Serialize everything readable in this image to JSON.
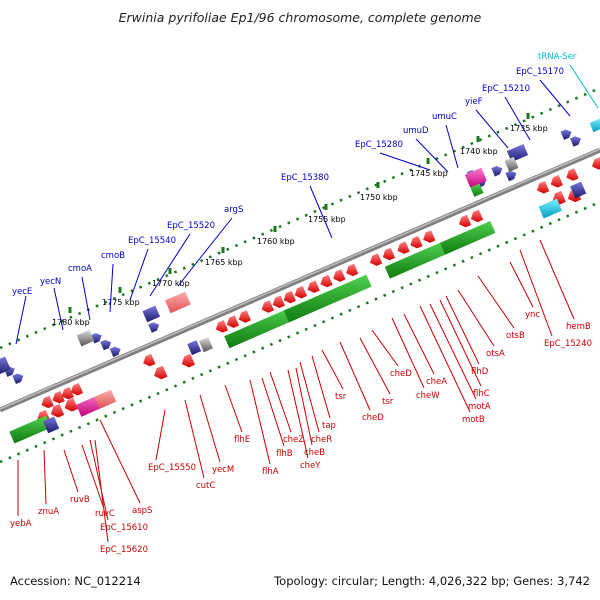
{
  "title": "Erwinia pyrifoliae Ep1/96 chromosome, complete genome",
  "footer": {
    "accession": "Accession: NC_012214",
    "summary": "Topology: circular; Length: 4,026,322 bp; Genes: 3,742"
  },
  "colors": {
    "forward_label": "#0000cc",
    "reverse_label": "#cc0000",
    "trna_label": "#00bcd4",
    "backbone": "#808080",
    "ruler_dots": "#1a7a1a"
  },
  "ruler": [
    {
      "label": "1780 kbp"
    },
    {
      "label": "1775 kbp"
    },
    {
      "label": "1770 kbp"
    },
    {
      "label": "1765 kbp"
    },
    {
      "label": "1760 kbp"
    },
    {
      "label": "1755 kbp"
    },
    {
      "label": "1750 kbp"
    },
    {
      "label": "1745 kbp"
    },
    {
      "label": "1740 kbp"
    },
    {
      "label": "1735 kbp"
    }
  ],
  "top_labels": [
    {
      "text": "yecE"
    },
    {
      "text": "yecN"
    },
    {
      "text": "cmoA"
    },
    {
      "text": "cmoB"
    },
    {
      "text": "EpC_15540"
    },
    {
      "text": "EpC_15520"
    },
    {
      "text": "argS"
    },
    {
      "text": "EpC_15380"
    },
    {
      "text": "EpC_15280"
    },
    {
      "text": "umuD"
    },
    {
      "text": "umuC"
    },
    {
      "text": "yieF"
    },
    {
      "text": "EpC_15210"
    },
    {
      "text": "EpC_15170"
    },
    {
      "text": "tRNA-Ser"
    }
  ],
  "bottom_labels": [
    {
      "text": "yebA"
    },
    {
      "text": "znuA"
    },
    {
      "text": "ruvB"
    },
    {
      "text": "ruvC"
    },
    {
      "text": "EpC_15610"
    },
    {
      "text": "EpC_15620"
    },
    {
      "text": "aspS"
    },
    {
      "text": "EpC_15550"
    },
    {
      "text": "cutC"
    },
    {
      "text": "yecM"
    },
    {
      "text": "flhE"
    },
    {
      "text": "flhA"
    },
    {
      "text": "flhB"
    },
    {
      "text": "cheZ"
    },
    {
      "text": "cheY"
    },
    {
      "text": "cheB"
    },
    {
      "text": "cheR"
    },
    {
      "text": "tap"
    },
    {
      "text": "tsr"
    },
    {
      "text": "cheD"
    },
    {
      "text": "tsr"
    },
    {
      "text": "cheD"
    },
    {
      "text": "cheW"
    },
    {
      "text": "cheA"
    },
    {
      "text": "motB"
    },
    {
      "text": "motA"
    },
    {
      "text": "flhC"
    },
    {
      "text": "flhD"
    },
    {
      "text": "otsA"
    },
    {
      "text": "otsB"
    },
    {
      "text": "ync"
    },
    {
      "text": "EpC_15240"
    },
    {
      "text": "hemB"
    }
  ]
}
